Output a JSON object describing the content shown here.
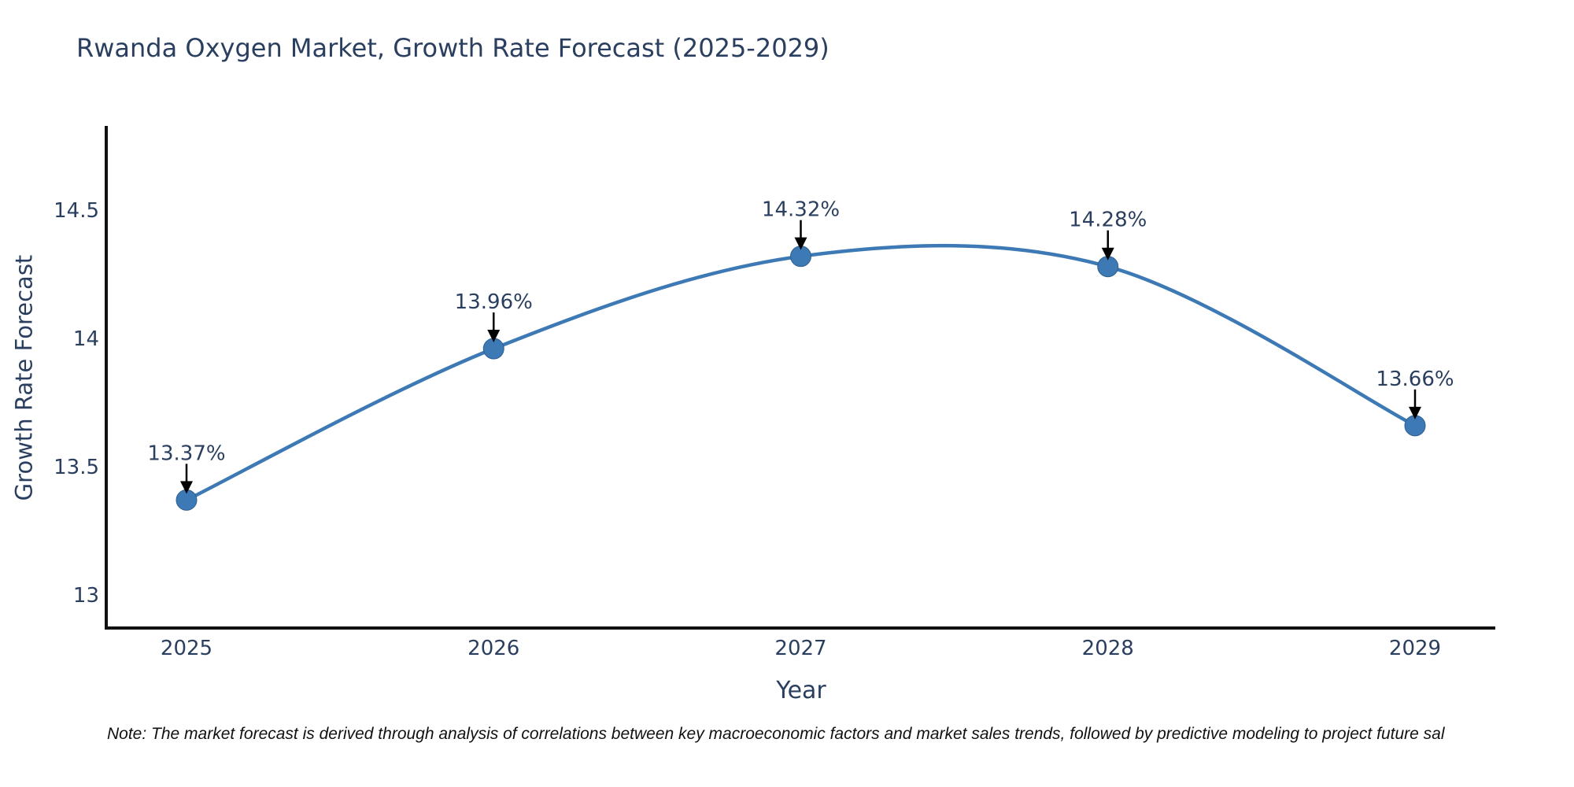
{
  "page": {
    "background": "#ffffff"
  },
  "chart_data": {
    "type": "line",
    "line_shape": "spline",
    "title": "Rwanda Oxygen Market, Growth Rate Forecast (2025-2029)",
    "xlabel": "Year",
    "ylabel": "Growth Rate Forecast",
    "x": [
      2025,
      2026,
      2027,
      2028,
      2029
    ],
    "x_tick_labels": [
      "2025",
      "2026",
      "2027",
      "2028",
      "2029"
    ],
    "series": [
      {
        "name": "Growth Rate Forecast",
        "values": [
          13.37,
          13.96,
          14.32,
          14.28,
          13.66
        ]
      }
    ],
    "point_labels": [
      "13.37%",
      "13.96%",
      "14.32%",
      "14.28%",
      "13.66%"
    ],
    "y_ticks": [
      14.5,
      14,
      13.5,
      13
    ],
    "y_tick_labels": [
      "14.5",
      "14",
      "13.5",
      "13"
    ],
    "ylim": [
      12.87,
      14.84
    ],
    "grid": false,
    "legend_position": "none",
    "annotations_have_arrows": true,
    "line_color": "#3d7ab5",
    "marker_color": "#3d7ab5",
    "marker_edge_color": "#2f5f8f",
    "arrow_color": "#000000",
    "axis_line_color": "#111111",
    "text_color": "#2a3f5f"
  },
  "footnote": {
    "text": "Note: The market forecast is derived through analysis of correlations between key macroeconomic factors and market sales trends, followed by predictive modeling to project future sal"
  }
}
